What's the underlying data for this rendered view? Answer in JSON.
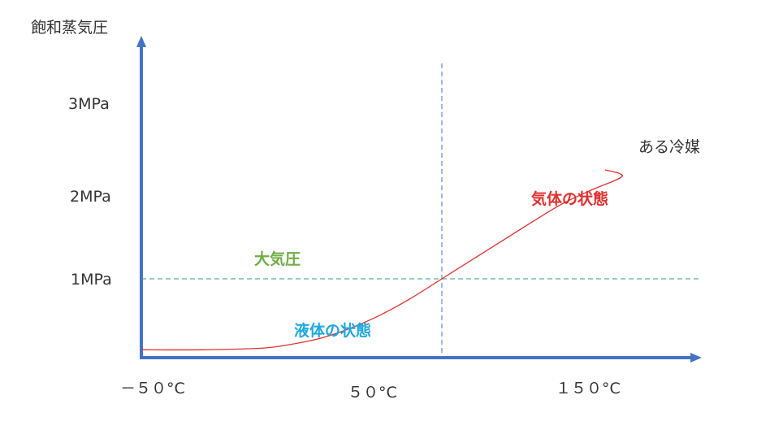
{
  "chart_data": {
    "type": "line",
    "ylabel": "飽和蒸気圧",
    "y_ticks": [
      "3MPa",
      "2MPa",
      "1MPa"
    ],
    "x_ticks": [
      "－５０°C",
      "５０°C",
      "１５０°C"
    ],
    "series": [
      {
        "name": "ある冷媒",
        "x": [
          -50,
          -30,
          -10,
          0,
          10,
          20,
          30,
          40,
          50,
          60,
          70,
          80,
          90,
          100,
          110,
          120
        ],
        "y": [
          0.1,
          0.1,
          0.12,
          0.17,
          0.25,
          0.38,
          0.55,
          0.76,
          1.0,
          1.24,
          1.48,
          1.72,
          1.95,
          2.13,
          2.3,
          2.3
        ],
        "color": "#e03030"
      }
    ],
    "reference_lines": {
      "atmospheric_pressure_y": 1.0,
      "vertical_x": 50
    },
    "annotations": {
      "atmospheric": "大気圧",
      "liquid": "液体の状態",
      "gas": "気体の状態"
    },
    "colors": {
      "axis": "#4472c4",
      "ref_h": "#2e9c8c",
      "ref_v": "#4472c4",
      "atmospheric": "#70ad47",
      "liquid": "#1ea7e1",
      "gas": "#e03030",
      "text": "#333333"
    }
  }
}
